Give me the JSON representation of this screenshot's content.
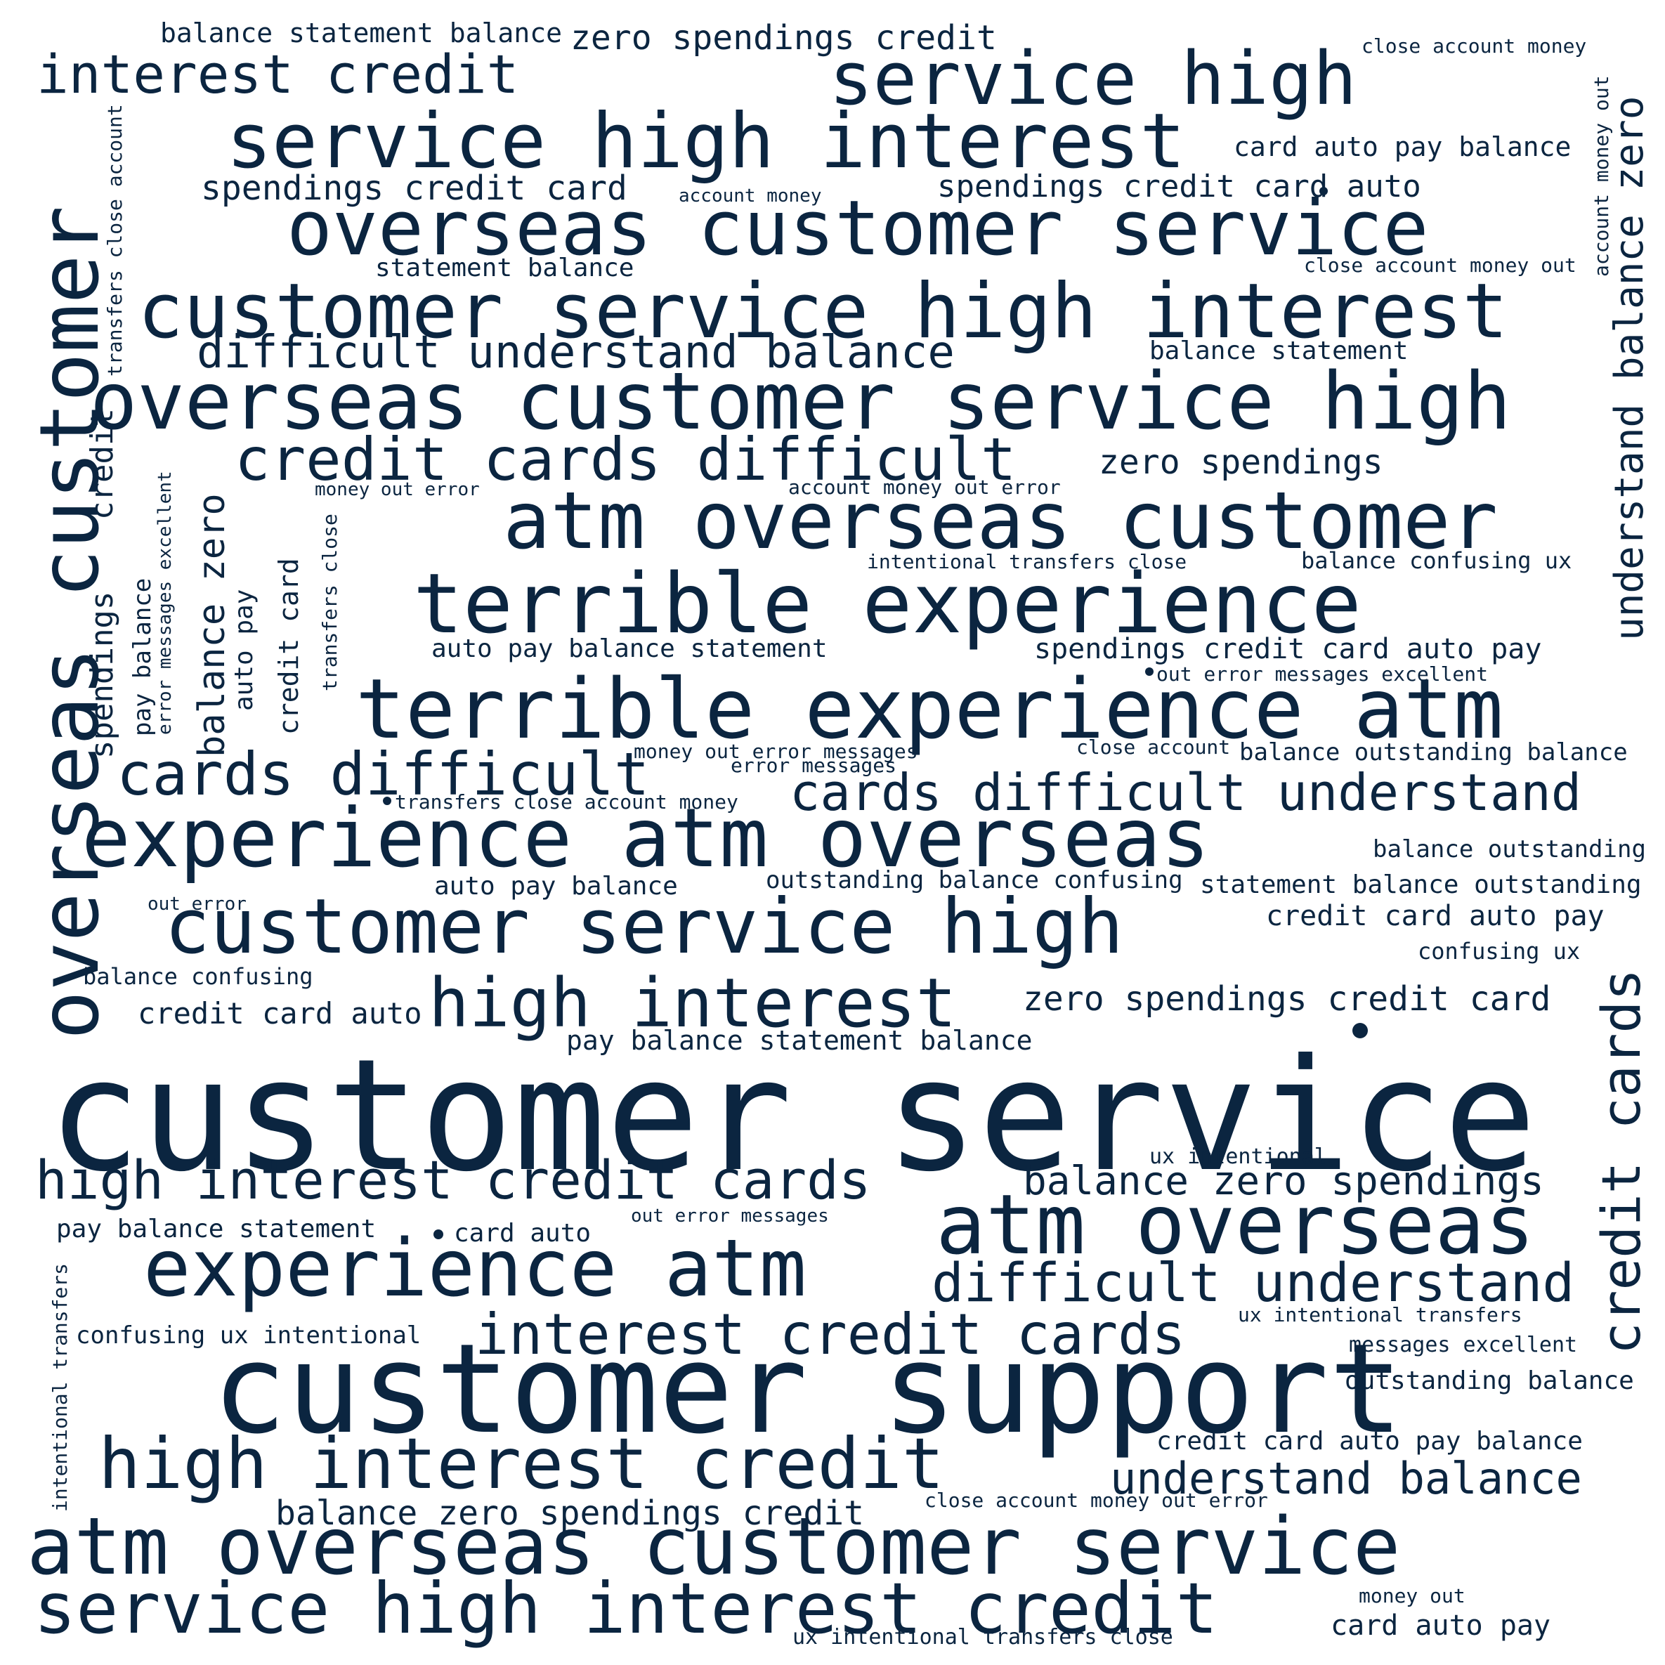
{
  "colors": {
    "background": "#ffffff",
    "text": "#0b2540"
  },
  "words": {
    "w1": "balance statement balance",
    "w2": "zero spendings credit",
    "w3": "close account money",
    "w4": "interest credit",
    "w5": "service high",
    "w6": "service high interest",
    "w7": "card auto pay balance",
    "w8": "spendings credit card",
    "w9": "account money",
    "w10": "spendings credit card auto",
    "w11": "overseas customer service",
    "w12": "statement balance",
    "w13": "close account money out",
    "w14": "customer service high interest",
    "w15": "difficult understand balance",
    "w16": "balance statement",
    "w17": "overseas customer service high",
    "w18": "credit cards difficult",
    "w19": "zero spendings",
    "w20": "money out error",
    "w21": "account money out error",
    "w22": "atm overseas customer",
    "w23": "intentional transfers close",
    "w24": "balance confusing ux",
    "w25": "terrible experience",
    "w26": "auto pay balance statement",
    "w27": "spendings credit card auto pay",
    "w28": "out error messages excellent",
    "w29": "terrible experience atm",
    "w30": "money out error messages",
    "w31": "close account",
    "w32": "balance outstanding balance",
    "w33": "error messages",
    "w34": "cards difficult",
    "w35": "transfers close account money",
    "w36": "cards difficult understand",
    "w37": "experience atm overseas",
    "w38": "balance outstanding",
    "w39": "auto pay balance",
    "w40": "outstanding balance confusing",
    "w41": "statement balance outstanding",
    "w42": "out error",
    "w43": "customer service high",
    "w44": "credit card auto pay",
    "w45": "confusing ux",
    "w46": "balance confusing",
    "w47": "high interest",
    "w48": "zero spendings credit card",
    "w49": "credit card auto",
    "w50": "pay balance statement balance",
    "w51": "customer service",
    "w52": "ux intentional",
    "w53": "high interest credit cards",
    "w54": "balance zero spendings",
    "w55": "out error messages",
    "w56": "atm overseas",
    "w57": "pay balance statement",
    "w58": "card auto",
    "w59": "experience atm",
    "w60": "difficult understand",
    "w61": "ux intentional transfers",
    "w62": "confusing ux intentional",
    "w63": "interest credit cards",
    "w64": "messages excellent",
    "w65": "customer support",
    "w66": "outstanding balance",
    "w67": "credit card auto pay balance",
    "w68": "high interest credit",
    "w69": "understand balance",
    "w70": "balance zero spendings credit",
    "w71": "close account money out error",
    "w72": "atm overseas customer service",
    "w73": "service high interest credit",
    "w74": "money out",
    "w75": "card auto pay",
    "w76": "ux intentional transfers close",
    "v1": "overseas customer",
    "v2": "transfers close account",
    "v3": "credit",
    "v4": "spendings",
    "v5": "pay balance",
    "v6": "error messages excellent",
    "v7": "balance zero",
    "v8": "auto pay",
    "v9": "credit card",
    "v10": "transfers close",
    "v11": "understand balance zero",
    "v12": "account money out",
    "v13": "credit cards",
    "v14": "intentional transfers"
  }
}
